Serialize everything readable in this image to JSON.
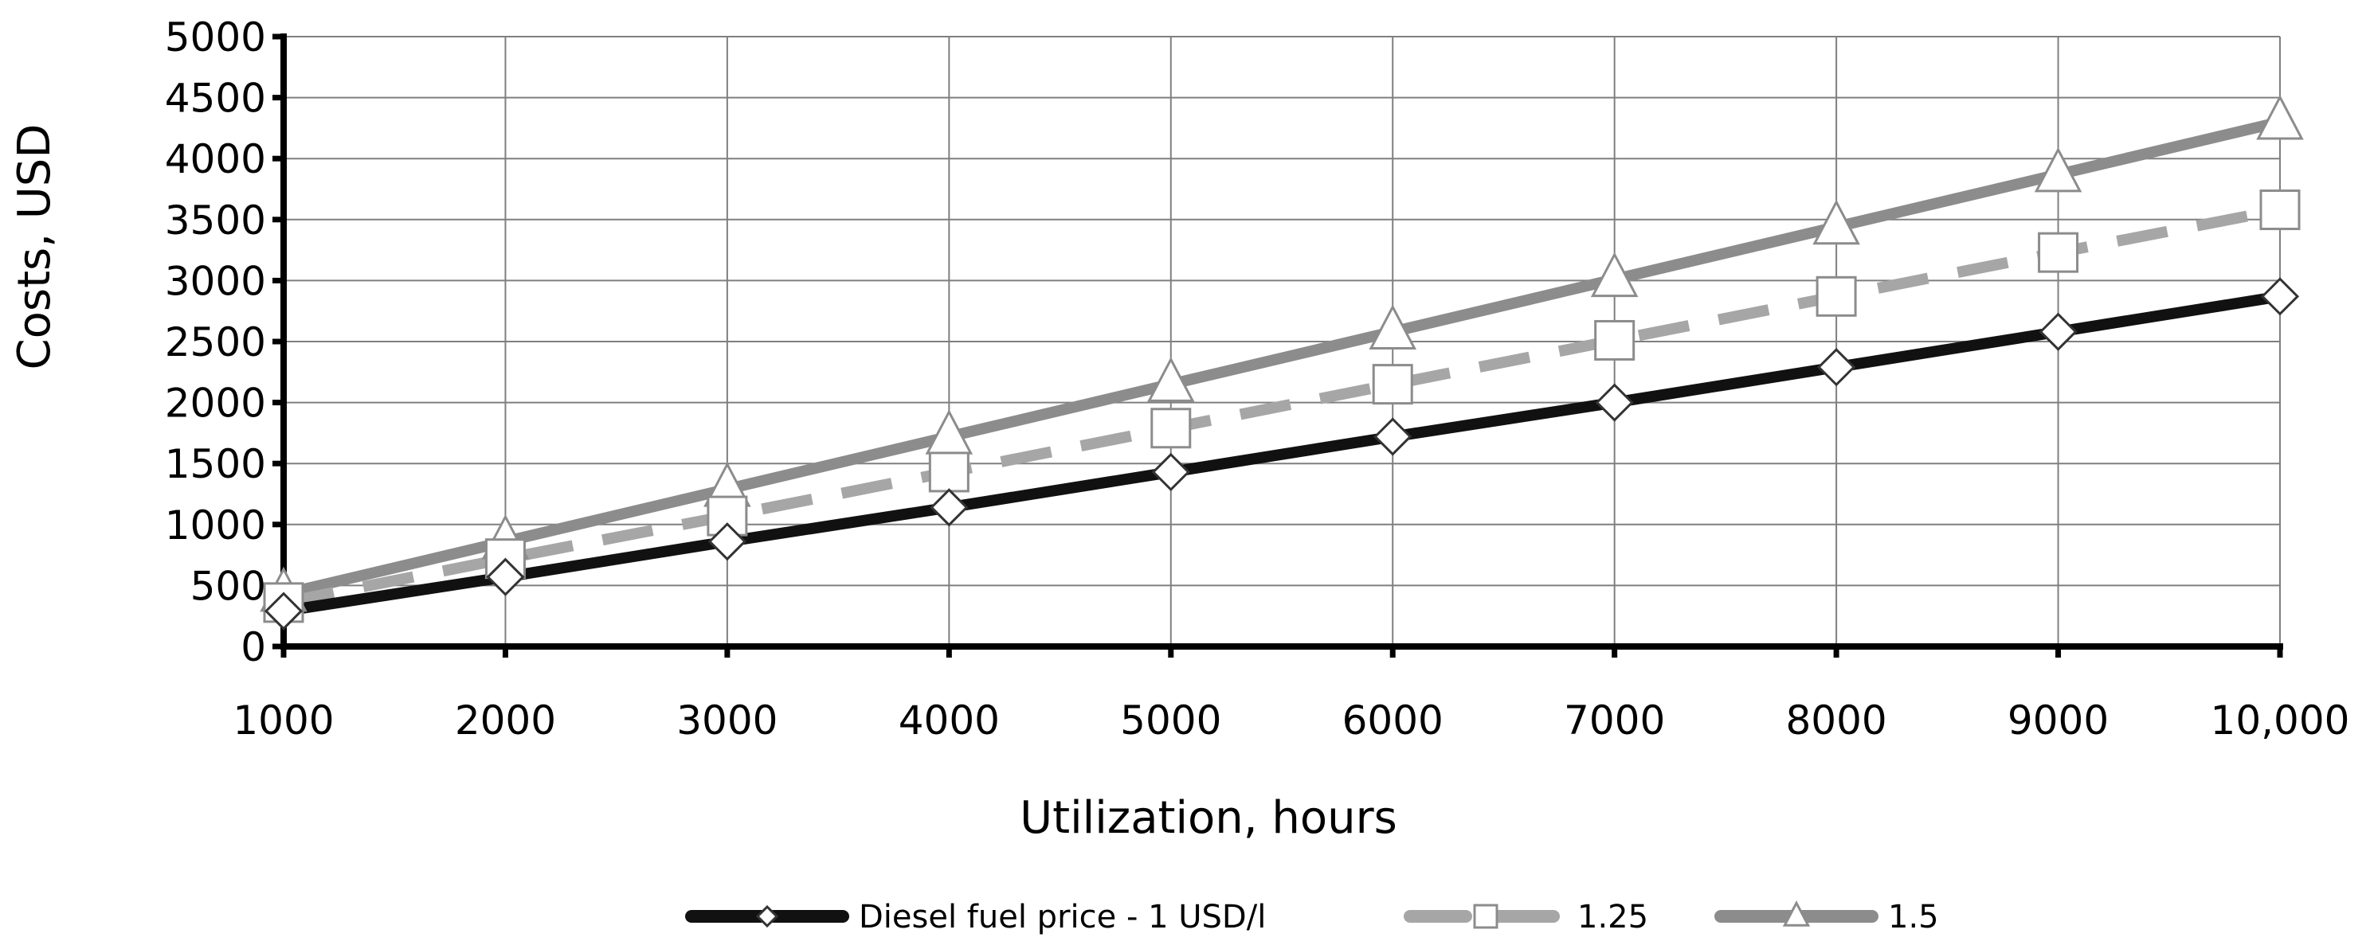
{
  "chart_data": {
    "type": "line",
    "title": "",
    "xlabel": "Utilization, hours",
    "ylabel": "Costs, USD",
    "categories": [
      "1000",
      "2000",
      "3000",
      "4000",
      "5000",
      "6000",
      "7000",
      "8000",
      "9000",
      "10,000"
    ],
    "x": [
      1000,
      2000,
      3000,
      4000,
      5000,
      6000,
      7000,
      8000,
      9000,
      10000
    ],
    "yticks": [
      "0",
      "500",
      "1000",
      "1500",
      "2000",
      "2500",
      "3000",
      "3500",
      "4000",
      "4500",
      "5000"
    ],
    "ylim": [
      0,
      5000
    ],
    "grid": true,
    "legend_position": "bottom",
    "series": [
      {
        "name": "Diesel fuel price - 1 USD/l",
        "values": [
          290,
          570,
          860,
          1140,
          1430,
          1720,
          2000,
          2290,
          2580,
          2870
        ],
        "color": "#111111",
        "marker": "diamond",
        "dash": "solid"
      },
      {
        "name": "1.25",
        "values": [
          360,
          720,
          1070,
          1430,
          1790,
          2150,
          2510,
          2870,
          3230,
          3580
        ],
        "color": "#a6a6a6",
        "marker": "square",
        "dash": "dashed"
      },
      {
        "name": "1.5",
        "values": [
          430,
          860,
          1290,
          1720,
          2150,
          2580,
          3010,
          3440,
          3870,
          4300
        ],
        "color": "#8c8c8c",
        "marker": "triangle",
        "dash": "solid"
      }
    ]
  }
}
